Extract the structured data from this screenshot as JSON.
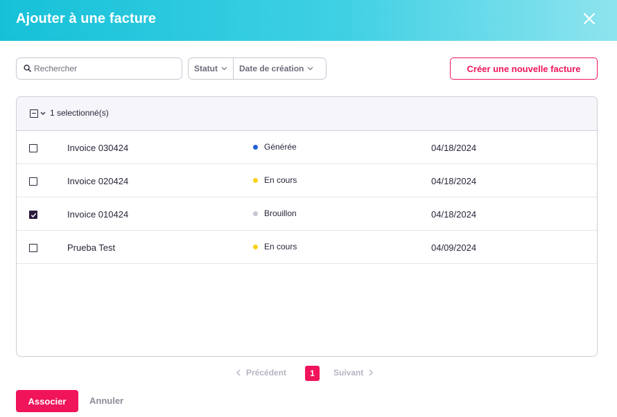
{
  "dialog": {
    "title": "Ajouter à une facture",
    "close_icon": "close-icon"
  },
  "toolbar": {
    "search_placeholder": "Rechercher",
    "search_value": "",
    "filters": [
      {
        "label": "Statut",
        "icon": "chevron-down-icon"
      },
      {
        "label": "Date de création",
        "icon": "chevron-down-icon"
      }
    ],
    "create_label": "Créer une nouvelle facture"
  },
  "table": {
    "selection_label": "1 selectionné(s)",
    "rows": [
      {
        "name": "Invoice 030424",
        "status": "Générée",
        "status_color": "#1f5fd6",
        "date": "04/18/2024",
        "checked": false
      },
      {
        "name": "Invoice 020424",
        "status": "En cours",
        "status_color": "#f7d417",
        "date": "04/18/2024",
        "checked": false
      },
      {
        "name": "Invoice 010424",
        "status": "Brouillon",
        "status_color": "#c9c6d2",
        "date": "04/18/2024",
        "checked": true
      },
      {
        "name": "Prueba Test",
        "status": "En cours",
        "status_color": "#f7d417",
        "date": "04/09/2024",
        "checked": false
      }
    ]
  },
  "pagination": {
    "prev_label": "Précédent",
    "current_page": "1",
    "next_label": "Suivant"
  },
  "footer": {
    "associate_label": "Associer",
    "cancel_label": "Annuler"
  },
  "colors": {
    "accent": "#f0145a",
    "header_gradient_start": "#16c1d8",
    "header_gradient_end": "#8ee4ee"
  }
}
